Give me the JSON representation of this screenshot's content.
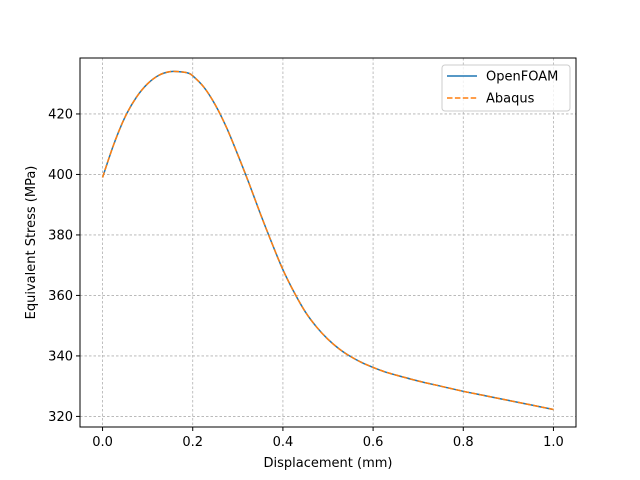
{
  "chart_data": {
    "type": "line",
    "xlabel": "Displacement (mm)",
    "ylabel": "Equivalent Stress (MPa)",
    "xlim": [
      -0.05,
      1.05
    ],
    "ylim": [
      316.5,
      438.5
    ],
    "xticks": [
      0.0,
      0.2,
      0.4,
      0.6,
      0.8,
      1.0
    ],
    "xtick_labels": [
      "0.0",
      "0.2",
      "0.4",
      "0.6",
      "0.8",
      "1.0"
    ],
    "yticks": [
      320,
      340,
      360,
      380,
      400,
      420
    ],
    "ytick_labels": [
      "320",
      "340",
      "360",
      "380",
      "400",
      "420"
    ],
    "grid": true,
    "legend_position": "top-right",
    "x": [
      0.0,
      0.025,
      0.05,
      0.075,
      0.1,
      0.125,
      0.15,
      0.175,
      0.19,
      0.2,
      0.225,
      0.25,
      0.275,
      0.3,
      0.325,
      0.35,
      0.375,
      0.4,
      0.425,
      0.45,
      0.475,
      0.5,
      0.525,
      0.55,
      0.575,
      0.6,
      0.625,
      0.65,
      0.7,
      0.75,
      0.8,
      0.85,
      0.9,
      0.95,
      1.0
    ],
    "series": [
      {
        "name": "OpenFOAM",
        "color": "#1f77b4",
        "style": "solid",
        "values": [
          399,
          410,
          419,
          425.5,
          430,
          432.8,
          434,
          433.9,
          433.5,
          432.6,
          428.8,
          423,
          415.5,
          406.5,
          397,
          387,
          377.5,
          368.5,
          361,
          354.5,
          349.5,
          345.5,
          342.3,
          339.8,
          337.8,
          336.2,
          334.8,
          333.7,
          331.7,
          330,
          328.3,
          326.8,
          325.3,
          323.8,
          322.3
        ]
      },
      {
        "name": "Abaqus",
        "color": "#ff7f0e",
        "style": "dashed",
        "values": [
          399,
          410,
          419,
          425.5,
          430,
          432.8,
          434,
          433.9,
          433.5,
          432.6,
          428.8,
          423,
          415.5,
          406.5,
          397,
          387,
          377.5,
          368.5,
          361,
          354.5,
          349.5,
          345.5,
          342.3,
          339.8,
          337.8,
          336.2,
          334.8,
          333.7,
          331.7,
          330,
          328.3,
          326.8,
          325.3,
          323.8,
          322.3
        ]
      }
    ]
  }
}
